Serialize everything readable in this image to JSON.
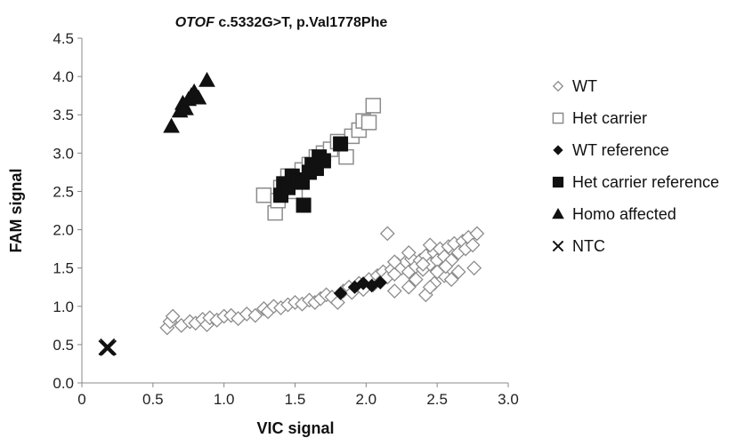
{
  "chart_data": {
    "type": "scatter",
    "title": {
      "gene": "OTOF",
      "variant": " c.5332G>T, p.Val1778Phe"
    },
    "xlabel": "VIC signal",
    "ylabel": "FAM signal",
    "xlim": [
      0,
      3.0
    ],
    "ylim": [
      0,
      4.5
    ],
    "xticks": [
      "0",
      "0.5",
      "1.0",
      "1.5",
      "2.0",
      "2.5",
      "3.0"
    ],
    "yticks": [
      "0.0",
      "0.5",
      "1.0",
      "1.5",
      "2.0",
      "2.5",
      "3.0",
      "3.5",
      "4.0",
      "4.5"
    ],
    "legend_position": "right",
    "grid": false,
    "series": [
      {
        "name": "WT",
        "marker": "diamond-open",
        "color": "#8c8c8c",
        "points": [
          [
            0.6,
            0.72
          ],
          [
            0.62,
            0.8
          ],
          [
            0.64,
            0.87
          ],
          [
            0.7,
            0.75
          ],
          [
            0.76,
            0.8
          ],
          [
            0.8,
            0.78
          ],
          [
            0.85,
            0.83
          ],
          [
            0.88,
            0.76
          ],
          [
            0.9,
            0.85
          ],
          [
            0.95,
            0.82
          ],
          [
            1.0,
            0.87
          ],
          [
            1.05,
            0.88
          ],
          [
            1.1,
            0.84
          ],
          [
            1.16,
            0.9
          ],
          [
            1.22,
            0.88
          ],
          [
            1.28,
            0.97
          ],
          [
            1.31,
            0.93
          ],
          [
            1.35,
            1.0
          ],
          [
            1.4,
            0.98
          ],
          [
            1.45,
            1.02
          ],
          [
            1.5,
            1.05
          ],
          [
            1.55,
            1.03
          ],
          [
            1.6,
            1.08
          ],
          [
            1.64,
            1.05
          ],
          [
            1.68,
            1.1
          ],
          [
            1.72,
            1.15
          ],
          [
            1.76,
            1.12
          ],
          [
            1.8,
            1.05
          ],
          [
            1.84,
            1.2
          ],
          [
            1.88,
            1.25
          ],
          [
            1.9,
            1.18
          ],
          [
            1.95,
            1.3
          ],
          [
            1.98,
            1.22
          ],
          [
            2.02,
            1.35
          ],
          [
            2.05,
            1.28
          ],
          [
            2.08,
            1.4
          ],
          [
            2.1,
            1.32
          ],
          [
            2.12,
            1.45
          ],
          [
            2.15,
            1.38
          ],
          [
            2.18,
            1.48
          ],
          [
            2.2,
            1.42
          ],
          [
            2.22,
            1.55
          ],
          [
            2.25,
            1.5
          ],
          [
            2.28,
            1.58
          ],
          [
            2.3,
            1.45
          ],
          [
            2.32,
            1.62
          ],
          [
            2.35,
            1.52
          ],
          [
            2.38,
            1.6
          ],
          [
            2.4,
            1.48
          ],
          [
            2.42,
            1.66
          ],
          [
            2.45,
            1.55
          ],
          [
            2.48,
            1.7
          ],
          [
            2.5,
            1.6
          ],
          [
            2.52,
            1.75
          ],
          [
            2.55,
            1.65
          ],
          [
            2.58,
            1.78
          ],
          [
            2.6,
            1.6
          ],
          [
            2.62,
            1.82
          ],
          [
            2.65,
            1.7
          ],
          [
            2.68,
            1.85
          ],
          [
            2.7,
            1.75
          ],
          [
            2.72,
            1.9
          ],
          [
            2.75,
            1.8
          ],
          [
            2.78,
            1.95
          ],
          [
            2.76,
            1.5
          ],
          [
            2.55,
            1.4
          ],
          [
            2.48,
            1.3
          ],
          [
            2.42,
            1.15
          ],
          [
            2.45,
            1.25
          ],
          [
            2.35,
            1.35
          ],
          [
            2.2,
            1.2
          ],
          [
            2.15,
            1.95
          ],
          [
            2.3,
            1.25
          ],
          [
            2.6,
            1.35
          ],
          [
            2.5,
            1.45
          ],
          [
            2.4,
            1.55
          ],
          [
            2.65,
            1.45
          ],
          [
            2.3,
            1.7
          ],
          [
            2.2,
            1.58
          ],
          [
            2.45,
            1.8
          ],
          [
            2.56,
            1.52
          ]
        ]
      },
      {
        "name": "Het carrier",
        "marker": "square-open",
        "color": "#8c8c8c",
        "points": [
          [
            1.28,
            2.45
          ],
          [
            1.36,
            2.22
          ],
          [
            1.38,
            2.38
          ],
          [
            1.4,
            2.55
          ],
          [
            1.45,
            2.7
          ],
          [
            1.5,
            2.5
          ],
          [
            1.55,
            2.78
          ],
          [
            1.6,
            2.85
          ],
          [
            1.65,
            2.95
          ],
          [
            1.7,
            3.0
          ],
          [
            1.75,
            3.05
          ],
          [
            1.8,
            3.15
          ],
          [
            1.86,
            2.95
          ],
          [
            1.9,
            3.22
          ],
          [
            1.95,
            3.3
          ],
          [
            1.98,
            3.42
          ],
          [
            2.02,
            3.4
          ],
          [
            2.05,
            3.62
          ]
        ]
      },
      {
        "name": "WT reference",
        "marker": "diamond-filled",
        "color": "#111111",
        "points": [
          [
            1.82,
            1.17
          ],
          [
            1.92,
            1.25
          ],
          [
            1.98,
            1.3
          ],
          [
            2.04,
            1.27
          ],
          [
            2.1,
            1.31
          ]
        ]
      },
      {
        "name": "Het carrier reference",
        "marker": "square-filled",
        "color": "#111111",
        "points": [
          [
            1.4,
            2.45
          ],
          [
            1.42,
            2.6
          ],
          [
            1.45,
            2.55
          ],
          [
            1.48,
            2.7
          ],
          [
            1.52,
            2.65
          ],
          [
            1.55,
            2.62
          ],
          [
            1.56,
            2.32
          ],
          [
            1.6,
            2.75
          ],
          [
            1.62,
            2.85
          ],
          [
            1.65,
            2.8
          ],
          [
            1.67,
            2.95
          ],
          [
            1.7,
            2.9
          ],
          [
            1.82,
            3.12
          ]
        ]
      },
      {
        "name": "Homo affected",
        "marker": "triangle-filled",
        "color": "#111111",
        "points": [
          [
            0.63,
            3.35
          ],
          [
            0.69,
            3.55
          ],
          [
            0.71,
            3.65
          ],
          [
            0.73,
            3.58
          ],
          [
            0.75,
            3.7
          ],
          [
            0.77,
            3.75
          ],
          [
            0.79,
            3.8
          ],
          [
            0.82,
            3.72
          ],
          [
            0.88,
            3.95
          ]
        ]
      },
      {
        "name": "NTC",
        "marker": "x",
        "color": "#111111",
        "points": [
          [
            0.17,
            0.46
          ],
          [
            0.18,
            0.48
          ],
          [
            0.19,
            0.46
          ],
          [
            0.18,
            0.45
          ]
        ]
      }
    ]
  }
}
